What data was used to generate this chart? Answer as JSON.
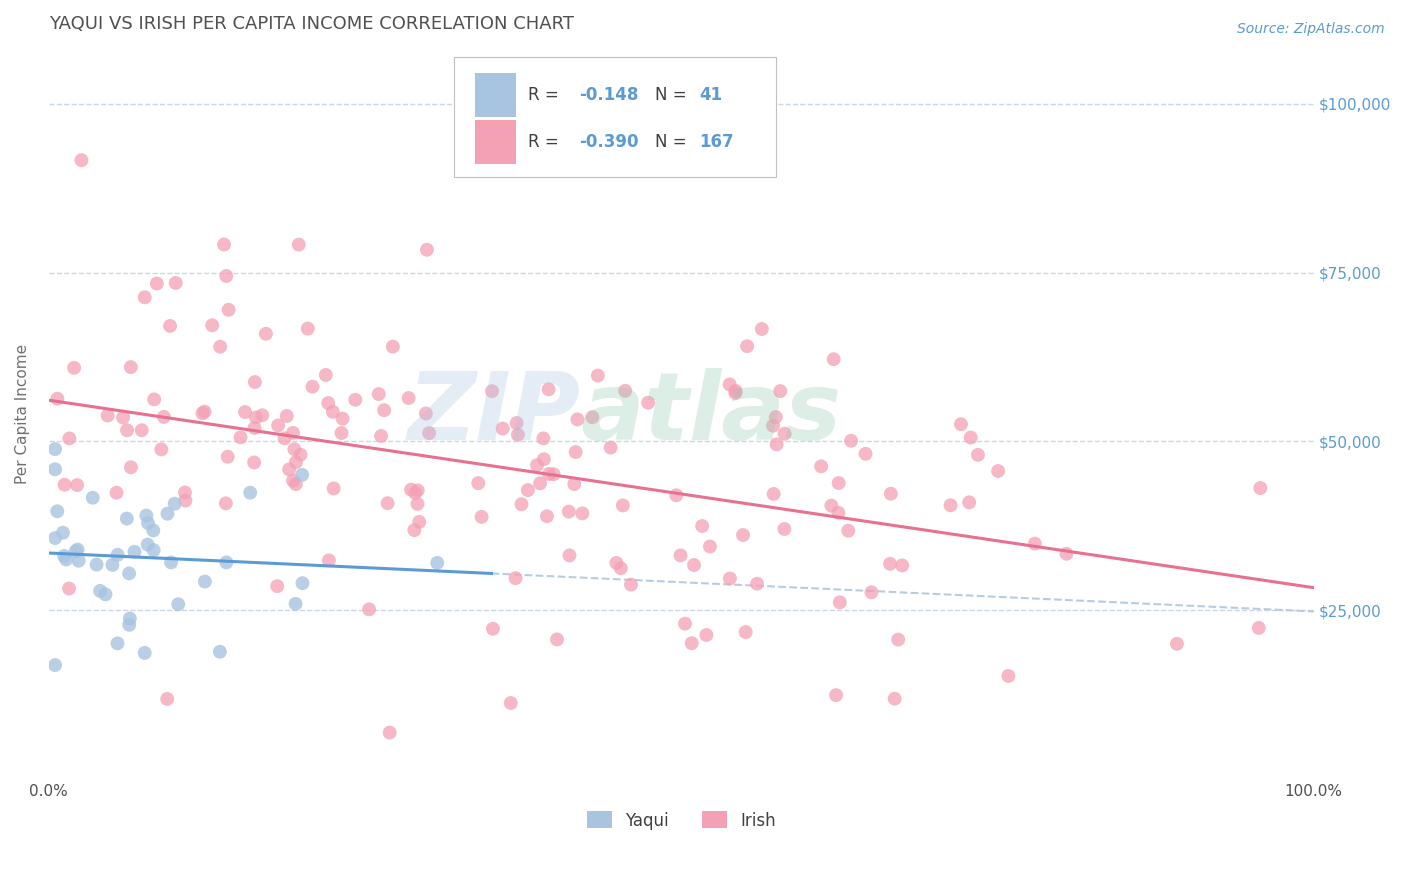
{
  "title": "YAQUI VS IRISH PER CAPITA INCOME CORRELATION CHART",
  "source": "Source: ZipAtlas.com",
  "ylabel": "Per Capita Income",
  "ytick_values": [
    25000,
    50000,
    75000,
    100000
  ],
  "y_right_labels": [
    "$25,000",
    "$50,000",
    "$75,000",
    "$100,000"
  ],
  "yaqui_color": "#a8c4e0",
  "irish_color": "#f4a0b5",
  "yaqui_line_color": "#5b9bd5",
  "irish_line_color": "#e87090",
  "dashed_line_color": "#b8cce0",
  "background_color": "#ffffff",
  "grid_color": "#c8d8e8",
  "title_color": "#505050",
  "source_color": "#5b9bd5",
  "watermark_zip_color": "#a8c4e0",
  "watermark_atlas_color": "#90c8b0",
  "xlim": [
    0.0,
    1.0
  ],
  "ylim": [
    0,
    108000
  ],
  "yaqui_n": 41,
  "irish_n": 167,
  "yaqui_R": -0.148,
  "irish_R": -0.39
}
